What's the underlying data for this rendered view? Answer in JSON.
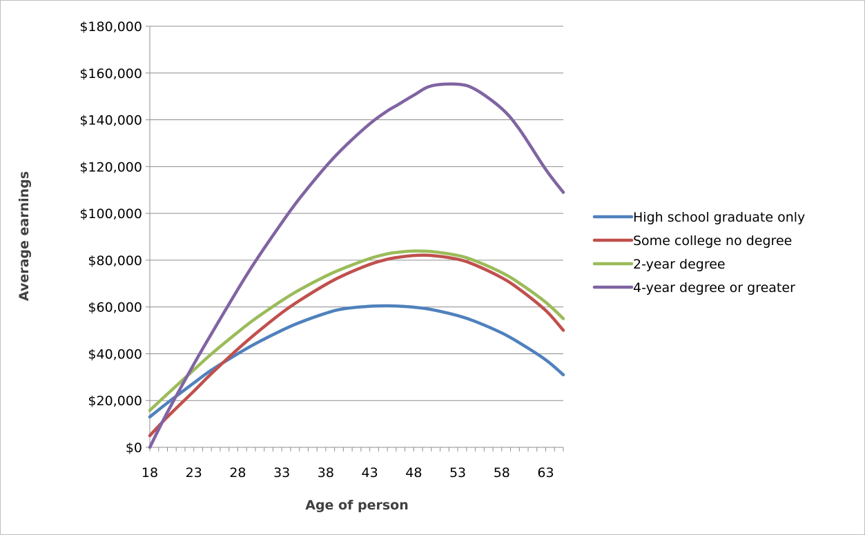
{
  "chart_data": {
    "type": "line",
    "title": "",
    "xlabel": "Age of person",
    "ylabel": "Average earnings",
    "xlim": [
      18,
      65
    ],
    "ylim": [
      0,
      180000
    ],
    "x_tick_values": [
      18,
      23,
      28,
      33,
      38,
      43,
      48,
      53,
      58,
      63
    ],
    "x_tick_labels": [
      "18",
      "23",
      "28",
      "33",
      "38",
      "43",
      "48",
      "53",
      "58",
      "63"
    ],
    "y_tick_values": [
      0,
      20000,
      40000,
      60000,
      80000,
      100000,
      120000,
      140000,
      160000,
      180000
    ],
    "y_tick_labels": [
      "$0",
      "$20,000",
      "$40,000",
      "$60,000",
      "$80,000",
      "$100,000",
      "$120,000",
      "$140,000",
      "$160,000",
      "$180,000"
    ],
    "grid": "horizontal",
    "legend_position": "right",
    "x": [
      18,
      20,
      23,
      25,
      28,
      30,
      33,
      35,
      38,
      40,
      43,
      45,
      46,
      48,
      50,
      53,
      55,
      58,
      60,
      63,
      65
    ],
    "series": [
      {
        "name": "High school graduate only",
        "color": "#4f81bd",
        "values": [
          13000,
          19000,
          27500,
          33000,
          40000,
          44300,
          50000,
          53300,
          57300,
          59200,
          60300,
          60500,
          60400,
          59900,
          58900,
          56300,
          53800,
          48900,
          44700,
          37400,
          31000
        ]
      },
      {
        "name": "Some college no degree",
        "color": "#c0504d",
        "values": [
          5000,
          13000,
          24000,
          31500,
          42000,
          48500,
          57500,
          62700,
          69600,
          73500,
          78200,
          80400,
          81100,
          82000,
          82000,
          80400,
          77900,
          72500,
          67600,
          58500,
          50000
        ]
      },
      {
        "name": "2-year degree",
        "color": "#9bbb59",
        "values": [
          15800,
          22800,
          33100,
          39900,
          49200,
          55000,
          62700,
          67300,
          73200,
          76500,
          80700,
          82700,
          83300,
          83900,
          83700,
          82000,
          79700,
          74700,
          70200,
          62000,
          55000
        ]
      },
      {
        "name": "4-year degree or greater",
        "color": "#8064a2",
        "values": [
          0,
          15000,
          35500,
          48500,
          67500,
          79500,
          96000,
          106300,
          120000,
          128000,
          138300,
          143800,
          146000,
          150500,
          154500,
          155200,
          153000,
          144800,
          136000,
          118800,
          109000
        ]
      }
    ]
  }
}
